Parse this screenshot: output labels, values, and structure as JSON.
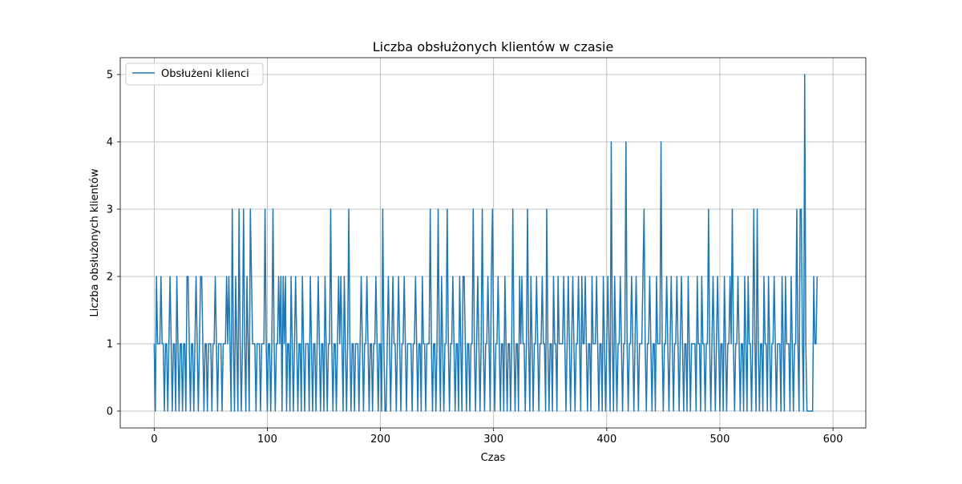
{
  "chart_data": {
    "type": "line",
    "title": "Liczba obsłużonych klientów w czasie",
    "xlabel": "Czas",
    "ylabel": "Liczba obsłużonych klientów",
    "xlim": [
      -30,
      629
    ],
    "ylim": [
      -0.25,
      5.25
    ],
    "xticks": [
      0,
      100,
      200,
      300,
      400,
      500,
      600
    ],
    "yticks": [
      0,
      1,
      2,
      3,
      4,
      5
    ],
    "grid": true,
    "legend": {
      "position": "top-left",
      "entries": [
        "Obsłużeni klienci"
      ]
    },
    "series": [
      {
        "name": "Obsłużeni klienci",
        "color": "#1f77b4",
        "x_start": 0,
        "x_step": 1,
        "values": [
          1,
          0,
          2,
          1,
          1,
          1,
          2,
          1,
          1,
          0,
          1,
          1,
          0,
          1,
          2,
          1,
          0,
          1,
          1,
          0,
          2,
          1,
          0,
          1,
          1,
          0,
          1,
          1,
          0,
          2,
          2,
          1,
          0,
          1,
          1,
          0,
          1,
          2,
          1,
          0,
          1,
          2,
          2,
          1,
          0,
          1,
          1,
          0,
          1,
          1,
          1,
          0,
          1,
          1,
          2,
          1,
          0,
          1,
          1,
          1,
          0,
          1,
          1,
          1,
          2,
          1,
          2,
          1,
          0,
          3,
          1,
          0,
          2,
          1,
          0,
          3,
          1,
          0,
          1,
          3,
          1,
          0,
          2,
          1,
          0,
          3,
          2,
          1,
          1,
          1,
          0,
          1,
          1,
          1,
          0,
          1,
          1,
          1,
          3,
          1,
          0,
          1,
          1,
          0,
          1,
          3,
          1,
          0,
          1,
          1,
          2,
          1,
          2,
          0,
          2,
          1,
          2,
          0,
          1,
          1,
          0,
          2,
          1,
          0,
          1,
          2,
          1,
          0,
          1,
          1,
          0,
          2,
          1,
          0,
          1,
          1,
          1,
          0,
          2,
          1,
          0,
          1,
          1,
          0,
          1,
          2,
          1,
          0,
          1,
          1,
          0,
          2,
          1,
          0,
          1,
          1,
          3,
          1,
          0,
          1,
          1,
          0,
          1,
          2,
          1,
          2,
          1,
          0,
          2,
          1,
          0,
          1,
          3,
          1,
          0,
          1,
          1,
          0,
          1,
          1,
          1,
          0,
          1,
          2,
          1,
          0,
          1,
          1,
          2,
          1,
          0,
          1,
          1,
          0,
          1,
          1,
          2,
          1,
          0,
          1,
          1,
          0,
          3,
          1,
          0,
          0,
          1,
          2,
          1,
          0,
          1,
          2,
          1,
          1,
          0,
          1,
          2,
          1,
          0,
          1,
          1,
          2,
          1,
          0,
          1,
          1,
          1,
          1,
          0,
          1,
          1,
          2,
          1,
          0,
          1,
          1,
          0,
          2,
          1,
          1,
          0,
          1,
          1,
          1,
          3,
          1,
          0,
          1,
          1,
          0,
          1,
          3,
          1,
          0,
          2,
          1,
          0,
          1,
          1,
          3,
          1,
          0,
          1,
          1,
          2,
          1,
          0,
          1,
          1,
          0,
          2,
          1,
          0,
          2,
          2,
          1,
          0,
          1,
          1,
          0,
          1,
          1,
          3,
          1,
          0,
          1,
          2,
          1,
          0,
          1,
          3,
          1,
          0,
          1,
          1,
          2,
          1,
          0,
          2,
          3,
          1,
          0,
          1,
          1,
          2,
          1,
          0,
          1,
          1,
          0,
          2,
          1,
          0,
          1,
          1,
          0,
          1,
          3,
          1,
          0,
          1,
          1,
          0,
          2,
          1,
          2,
          1,
          1,
          0,
          1,
          3,
          1,
          0,
          2,
          1,
          0,
          1,
          1,
          2,
          1,
          0,
          1,
          1,
          2,
          1,
          1,
          0,
          3,
          1,
          0,
          1,
          1,
          0,
          2,
          1,
          1,
          0,
          2,
          1,
          1,
          1,
          1,
          2,
          1,
          0,
          1,
          2,
          1,
          0,
          1,
          2,
          1,
          0,
          1,
          1,
          2,
          1,
          0,
          2,
          1,
          1,
          2,
          1,
          0,
          1,
          1,
          0,
          2,
          1,
          1,
          1,
          2,
          1,
          0,
          1,
          1,
          0,
          2,
          1,
          0,
          1,
          2,
          1,
          0,
          4,
          1,
          0,
          2,
          1,
          0,
          1,
          1,
          2,
          1,
          0,
          1,
          1,
          4,
          1,
          0,
          1,
          1,
          2,
          1,
          0,
          1,
          2,
          1,
          0,
          1,
          1,
          1,
          2,
          3,
          1,
          0,
          1,
          1,
          2,
          1,
          0,
          1,
          1,
          0,
          2,
          1,
          1,
          1,
          4,
          1,
          0,
          1,
          1,
          2,
          1,
          0,
          1,
          2,
          1,
          0,
          1,
          1,
          2,
          1,
          0,
          1,
          2,
          1,
          0,
          1,
          1,
          0,
          2,
          1,
          0,
          1,
          1,
          1,
          1,
          0,
          2,
          1,
          1,
          0,
          2,
          1,
          1,
          0,
          1,
          1,
          3,
          1,
          0,
          1,
          2,
          1,
          0,
          1,
          2,
          1,
          0,
          1,
          1,
          0,
          2,
          1,
          0,
          1,
          1,
          2,
          1,
          3,
          1,
          0,
          1,
          1,
          2,
          1,
          0,
          1,
          1,
          0,
          2,
          1,
          0,
          2,
          1,
          1,
          0,
          1,
          3,
          1,
          0,
          3,
          1,
          0,
          1,
          1,
          0,
          2,
          1,
          1,
          0,
          2,
          1,
          0,
          1,
          1,
          2,
          1,
          0,
          1,
          1,
          1,
          0,
          2,
          1,
          0,
          2,
          1,
          1,
          1,
          0,
          2,
          1,
          0,
          1,
          1,
          3,
          1,
          0,
          3,
          3,
          1,
          0,
          5,
          1,
          0,
          0,
          0,
          0,
          0,
          0,
          2,
          1,
          1,
          2
        ]
      }
    ]
  }
}
